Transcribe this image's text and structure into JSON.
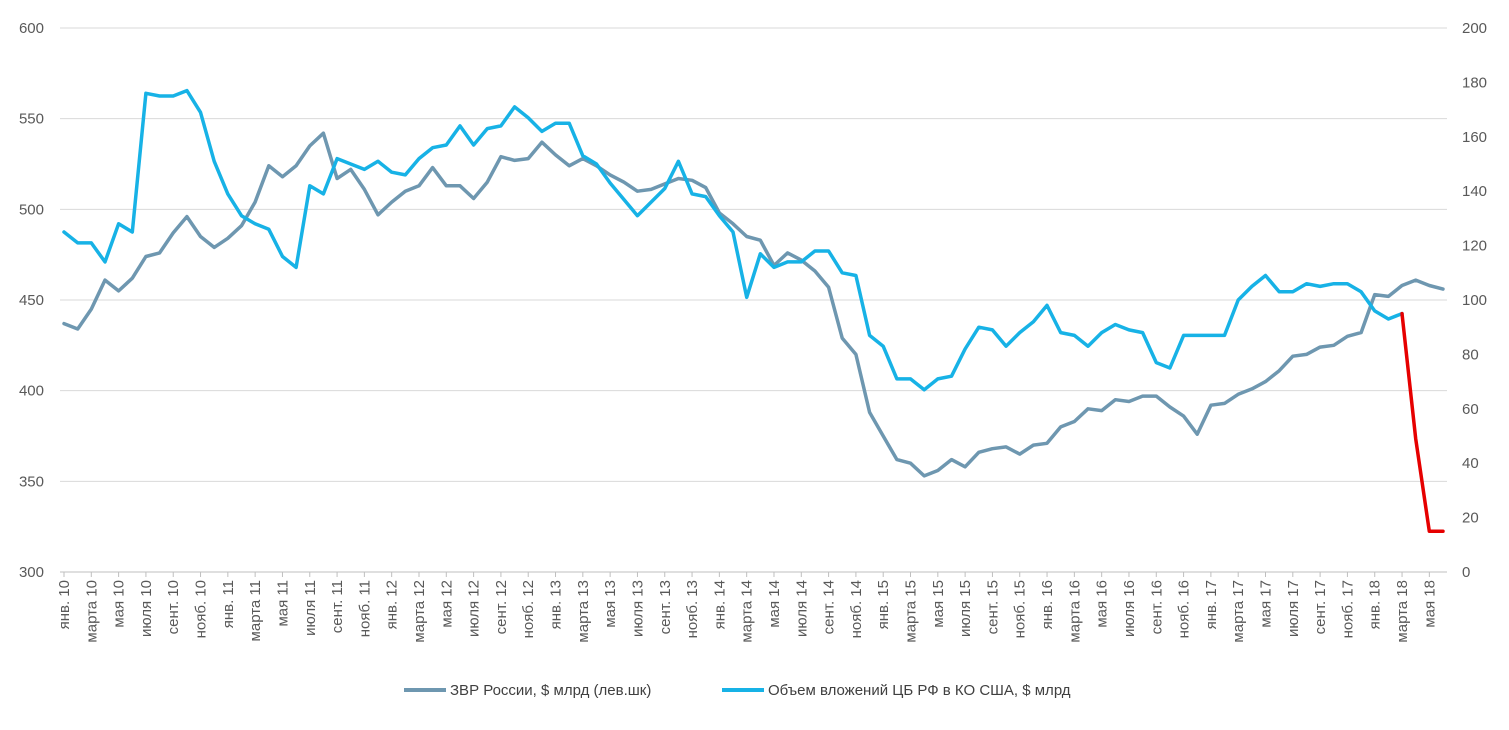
{
  "chart_data": {
    "type": "line",
    "title": "",
    "xlabel": "",
    "ylabel": "",
    "y_left": {
      "min": 300,
      "max": 600,
      "ticks": [
        300,
        350,
        400,
        450,
        500,
        550,
        600
      ]
    },
    "y_right": {
      "min": 0,
      "max": 200,
      "ticks": [
        0,
        20,
        40,
        60,
        80,
        100,
        120,
        140,
        160,
        180,
        200
      ]
    },
    "grid": "horizontal",
    "legend_position": "bottom",
    "x_tick_labels": [
      "янв. 10",
      "марта 10",
      "мая 10",
      "июля 10",
      "сент. 10",
      "нояб. 10",
      "янв. 11",
      "марта 11",
      "мая 11",
      "июля 11",
      "сент. 11",
      "нояб. 11",
      "янв. 12",
      "марта 12",
      "мая 12",
      "июля 12",
      "сент. 12",
      "нояб. 12",
      "янв. 13",
      "марта 13",
      "мая 13",
      "июля 13",
      "сент. 13",
      "нояб. 13",
      "янв. 14",
      "марта 14",
      "мая 14",
      "июля 14",
      "сент. 14",
      "нояб. 14",
      "янв. 15",
      "марта 15",
      "мая 15",
      "июля 15",
      "сент. 15",
      "нояб. 15",
      "янв. 16",
      "марта 16",
      "мая 16",
      "июля 16",
      "сент. 16",
      "нояб. 16",
      "янв. 17",
      "марта 17",
      "мая 17",
      "июля 17",
      "сент. 17",
      "нояб. 17",
      "янв. 18",
      "марта 18",
      "мая 18"
    ],
    "series": [
      {
        "name": "ЗВР России, $ млрд (лев.шк)",
        "axis": "left",
        "color": "#6e97b0",
        "values": [
          437,
          434,
          445,
          461,
          455,
          462,
          474,
          476,
          487,
          496,
          485,
          479,
          484,
          491,
          504,
          524,
          518,
          524,
          535,
          542,
          517,
          522,
          511,
          497,
          504,
          510,
          513,
          523,
          513,
          513,
          506,
          515,
          529,
          527,
          528,
          537,
          530,
          524,
          528,
          524,
          519,
          515,
          510,
          511,
          514,
          517,
          516,
          512,
          498,
          492,
          485,
          483,
          469,
          476,
          472,
          466,
          457,
          429,
          420,
          388,
          375,
          362,
          360,
          353,
          356,
          362,
          358,
          366,
          368,
          369,
          365,
          370,
          371,
          380,
          383,
          390,
          389,
          395,
          394,
          397,
          397,
          391,
          386,
          376,
          392,
          393,
          398,
          401,
          405,
          411,
          419,
          420,
          424,
          425,
          430,
          432,
          453,
          452,
          458,
          461,
          458,
          456
        ]
      },
      {
        "name": "Объем вложений ЦБ РФ в КО США, $ млрд",
        "axis": "right",
        "color": "#17b2e6",
        "values": [
          125,
          121,
          121,
          114,
          128,
          125,
          176,
          175,
          175,
          177,
          169,
          151,
          139,
          131,
          128,
          126,
          116,
          112,
          142,
          139,
          152,
          150,
          148,
          151,
          147,
          146,
          152,
          156,
          157,
          164,
          157,
          163,
          164,
          171,
          167,
          162,
          165,
          165,
          153,
          150,
          143,
          137,
          131,
          136,
          141,
          151,
          139,
          138,
          131,
          125,
          101,
          117,
          112,
          114,
          114,
          118,
          118,
          110,
          109,
          87,
          83,
          71,
          71,
          67,
          71,
          72,
          82,
          90,
          89,
          83,
          88,
          92,
          98,
          88,
          87,
          83,
          88,
          91,
          89,
          88,
          77,
          75,
          87,
          87,
          87,
          87,
          100,
          105,
          109,
          103,
          103,
          106,
          105,
          106,
          106,
          103,
          96,
          93,
          95,
          null,
          null,
          null
        ],
        "drop_segment": {
          "color": "#e60000",
          "values": [
            null,
            null,
            null,
            null,
            null,
            null,
            null,
            null,
            null,
            null,
            null,
            null,
            null,
            null,
            null,
            null,
            null,
            null,
            null,
            null,
            null,
            null,
            null,
            null,
            null,
            null,
            null,
            null,
            null,
            null,
            null,
            null,
            null,
            null,
            null,
            null,
            null,
            null,
            null,
            null,
            null,
            null,
            null,
            null,
            null,
            null,
            null,
            null,
            null,
            null,
            null,
            null,
            null,
            null,
            null,
            null,
            null,
            null,
            null,
            null,
            null,
            null,
            null,
            null,
            null,
            null,
            null,
            null,
            null,
            null,
            null,
            null,
            null,
            null,
            null,
            null,
            null,
            null,
            null,
            null,
            null,
            null,
            null,
            null,
            null,
            null,
            null,
            null,
            null,
            null,
            null,
            null,
            null,
            null,
            null,
            null,
            null,
            null,
            95,
            49,
            15,
            15
          ]
        }
      }
    ]
  }
}
